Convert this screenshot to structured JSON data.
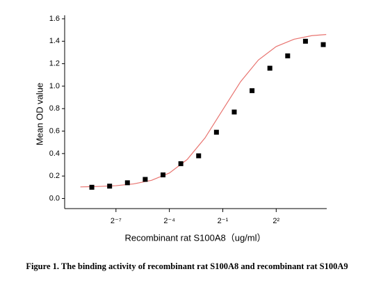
{
  "chart_data": {
    "type": "scatter",
    "xlabel": "Recombinant rat S100A8（ug/ml）",
    "ylabel": "Mean OD value",
    "caption": "Figure 1. The binding activity of recombinant rat S100A8 and recombinant rat S100A9",
    "xscale": "log2",
    "xlim": [
      0.00106,
      28.6
    ],
    "ylim": [
      -0.09,
      1.6
    ],
    "xticks": [
      {
        "value": 0.0078125,
        "label": "2⁻⁷"
      },
      {
        "value": 0.0625,
        "label": "2⁻⁴"
      },
      {
        "value": 0.5,
        "label": "2⁻¹"
      },
      {
        "value": 4,
        "label": "2²"
      }
    ],
    "yticks": [
      {
        "value": 0,
        "label": "0.0"
      },
      {
        "value": 0.2,
        "label": "0.2"
      },
      {
        "value": 0.4,
        "label": "0.4"
      },
      {
        "value": 0.6,
        "label": "0.6"
      },
      {
        "value": 0.8,
        "label": "0.8"
      },
      {
        "value": 1,
        "label": "1.0"
      },
      {
        "value": 1.2,
        "label": "1.2"
      },
      {
        "value": 1.4,
        "label": "1.4"
      },
      {
        "value": 1.6,
        "label": "1.6"
      }
    ],
    "series": [
      {
        "type": "scatter",
        "color": "#000000",
        "x": [
          0.0030518,
          0.0061035,
          0.012207,
          0.024414,
          0.048828,
          0.097656,
          0.19531,
          0.39063,
          0.78125,
          1.5625,
          3.125,
          6.25,
          12.5,
          25
        ],
        "values": [
          0.1,
          0.11,
          0.14,
          0.17,
          0.21,
          0.31,
          0.38,
          0.59,
          0.77,
          0.96,
          1.16,
          1.27,
          1.4,
          1.37
        ]
      },
      {
        "type": "line",
        "color": "#e8736f",
        "x": [
          0.001953,
          0.003906,
          0.0078125,
          0.015625,
          0.03125,
          0.0625,
          0.125,
          0.25,
          0.5,
          1,
          2,
          4,
          8,
          16,
          28
        ],
        "values": [
          0.103,
          0.107,
          0.114,
          0.13,
          0.162,
          0.227,
          0.347,
          0.539,
          0.79,
          1.04,
          1.233,
          1.353,
          1.418,
          1.45,
          1.46
        ]
      }
    ]
  }
}
